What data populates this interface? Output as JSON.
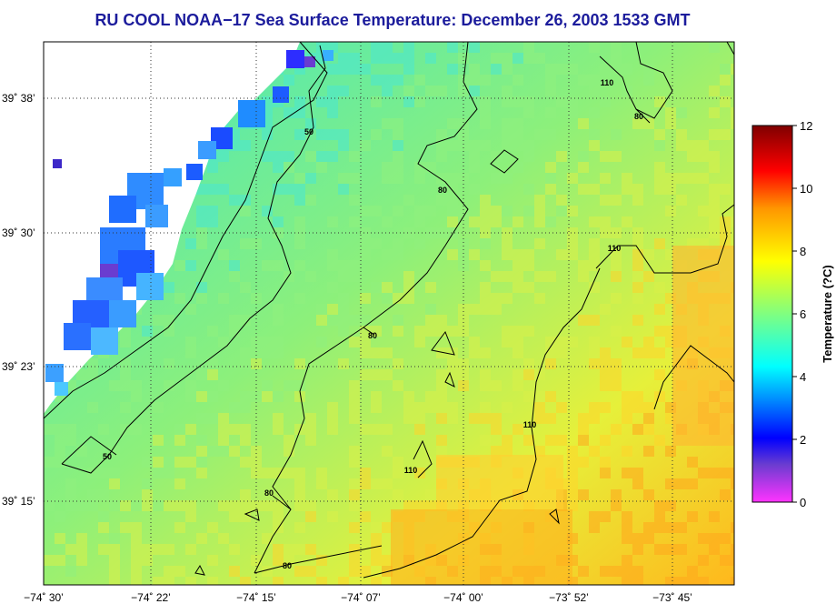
{
  "title": "RU COOL  NOAA−17  Sea Surface Temperature:  December 26, 2003 1533 GMT",
  "map": {
    "x_ticks": [
      "−74˚ 30’",
      "−74˚ 22’",
      "−74˚ 15’",
      "−74˚ 07’",
      "−74˚ 00’",
      "−73˚ 52’",
      "−73˚ 45’"
    ],
    "y_ticks": [
      "39˚ 38’",
      "39˚ 30’",
      "39˚ 23’",
      "39˚ 15’"
    ],
    "grid": true,
    "contour_levels": [
      "50",
      "80",
      "110"
    ],
    "contour_color": "#000000"
  },
  "colorbar": {
    "label": "Temperature (?C)",
    "ticks": [
      "12",
      "10",
      "8",
      "6",
      "4",
      "2",
      "0"
    ],
    "range": [
      0,
      12
    ],
    "colors": [
      "#ff33ff",
      "#5a3cc8",
      "#0000ff",
      "#0096ff",
      "#00ffff",
      "#80ff80",
      "#ffff00",
      "#ff9600",
      "#ff0000",
      "#b40000",
      "#7f0000"
    ]
  }
}
